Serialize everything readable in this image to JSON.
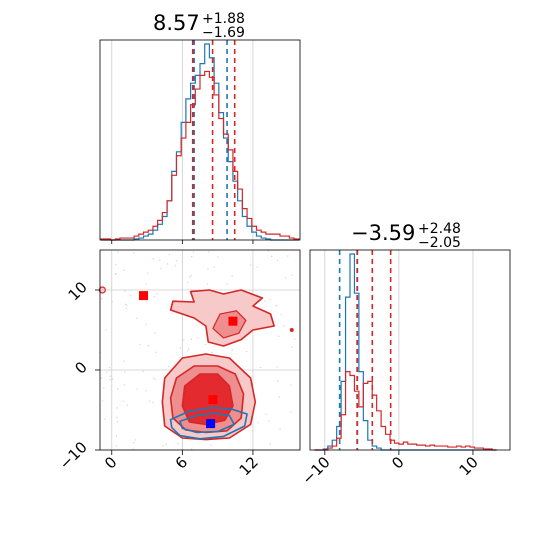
{
  "chart_data": [
    {
      "type": "histogram",
      "panel": "top-left",
      "title": {
        "main": "8.57",
        "plus": "+1.88",
        "minus": "−1.69"
      },
      "xlim": [
        -1,
        16
      ],
      "bins": [
        -0.9,
        -0.5,
        -0.1,
        0.3,
        0.7,
        1.1,
        1.5,
        1.9,
        2.3,
        2.7,
        3.1,
        3.5,
        3.9,
        4.3,
        4.7,
        5.1,
        5.5,
        5.9,
        6.3,
        6.7,
        7.1,
        7.5,
        7.9,
        8.3,
        8.7,
        9.1,
        9.5,
        9.9,
        10.3,
        10.7,
        11.1,
        11.5,
        11.9,
        12.3,
        12.7,
        13.1,
        13.5,
        13.9,
        14.3,
        14.7,
        15.1,
        15.5,
        15.9
      ],
      "series": [
        {
          "color": "#1f77b4",
          "values": [
            0,
            0,
            0,
            0,
            0,
            0,
            0,
            0.005,
            0.01,
            0.02,
            0.03,
            0.05,
            0.08,
            0.12,
            0.2,
            0.35,
            0.45,
            0.6,
            0.72,
            0.8,
            0.84,
            0.9,
            1.0,
            0.93,
            0.8,
            0.65,
            0.52,
            0.4,
            0.3,
            0.2,
            0.12,
            0.07,
            0.04,
            0.02,
            0.01,
            0.005,
            0,
            0,
            0,
            0,
            0,
            0
          ],
          "quantiles": [
            7.0,
            9.8
          ]
        },
        {
          "color": "#d62728",
          "values": [
            0.005,
            0.005,
            0,
            0.005,
            0.01,
            0.01,
            0.01,
            0.02,
            0.03,
            0.04,
            0.05,
            0.07,
            0.1,
            0.14,
            0.2,
            0.33,
            0.43,
            0.52,
            0.6,
            0.69,
            0.77,
            0.84,
            0.86,
            0.83,
            0.74,
            0.62,
            0.54,
            0.46,
            0.35,
            0.26,
            0.16,
            0.11,
            0.07,
            0.05,
            0.04,
            0.03,
            0.03,
            0.03,
            0.02,
            0.02,
            0.01,
            0.005
          ],
          "quantiles": [
            6.88,
            8.57,
            10.45
          ]
        }
      ]
    },
    {
      "type": "scatter",
      "panel": "bottom-left",
      "xlim": [
        -1,
        16
      ],
      "ylim": [
        -10,
        15
      ],
      "xticks": [
        0,
        6,
        12
      ],
      "yticks": [
        -10,
        0,
        10
      ],
      "xtick_labels": [
        "0",
        "6",
        "12"
      ],
      "ytick_labels": [
        "−10",
        "0",
        "10"
      ],
      "contours": [
        {
          "color": "#d62728",
          "level": "outer",
          "points": [
            [
              8,
              -8.7
            ],
            [
              6,
              -8.5
            ],
            [
              4.5,
              -7
            ],
            [
              4.3,
              -4
            ],
            [
              4.5,
              -1
            ],
            [
              6,
              1.5
            ],
            [
              8,
              2
            ],
            [
              10,
              1.5
            ],
            [
              11.8,
              -1
            ],
            [
              12.2,
              -4
            ],
            [
              11.8,
              -6.8
            ],
            [
              10,
              -8.5
            ]
          ]
        },
        {
          "color": "#d62728",
          "level": "middle",
          "points": [
            [
              8,
              -7.8
            ],
            [
              6.3,
              -7.5
            ],
            [
              5.2,
              -6
            ],
            [
              5,
              -3.5
            ],
            [
              5.5,
              -1
            ],
            [
              7,
              0.5
            ],
            [
              9,
              0.5
            ],
            [
              10.5,
              -0.5
            ],
            [
              11.2,
              -3
            ],
            [
              11,
              -6
            ],
            [
              9.8,
              -7.6
            ]
          ]
        },
        {
          "color": "#d62728",
          "level": "inner",
          "points": [
            [
              8,
              -6.8
            ],
            [
              6.6,
              -6.5
            ],
            [
              6,
              -4.5
            ],
            [
              6.2,
              -2
            ],
            [
              7.5,
              -0.5
            ],
            [
              9,
              -0.5
            ],
            [
              10,
              -2
            ],
            [
              10.3,
              -4.5
            ],
            [
              9.6,
              -6.3
            ]
          ]
        },
        {
          "color": "#d62728",
          "level": "upper-blob",
          "points": [
            [
              5,
              7.5
            ],
            [
              7,
              6.5
            ],
            [
              8,
              5.5
            ],
            [
              8.2,
              3.5
            ],
            [
              9.5,
              3
            ],
            [
              11,
              3.8
            ],
            [
              12,
              5
            ],
            [
              13.8,
              5.5
            ],
            [
              13.5,
              7
            ],
            [
              12,
              8
            ],
            [
              12.8,
              9
            ],
            [
              11,
              10
            ],
            [
              9.5,
              9.5
            ],
            [
              8.3,
              10
            ],
            [
              6.7,
              9.8
            ],
            [
              7,
              8.5
            ],
            [
              5.2,
              8.6
            ]
          ]
        }
      ],
      "blue_contours": [
        {
          "color": "#1f77b4",
          "points": [
            [
              5,
              -6.2
            ],
            [
              6.5,
              -5.2
            ],
            [
              8.5,
              -4.7
            ],
            [
              10.2,
              -4.9
            ],
            [
              11.5,
              -5.5
            ],
            [
              11.3,
              -7
            ],
            [
              9.5,
              -8.3
            ],
            [
              7.5,
              -8.6
            ],
            [
              5.8,
              -8.2
            ],
            [
              5.1,
              -7.2
            ]
          ]
        },
        {
          "color": "#1f77b4",
          "points": [
            [
              5.8,
              -6.4
            ],
            [
              7.2,
              -5.7
            ],
            [
              8.7,
              -5.4
            ],
            [
              10,
              -5.7
            ],
            [
              10.4,
              -6.8
            ],
            [
              9,
              -7.7
            ],
            [
              7.2,
              -7.8
            ],
            [
              6.0,
              -7.3
            ]
          ]
        }
      ],
      "markers": [
        {
          "x": 2.7,
          "y": 9.3,
          "color": "#ff0000"
        },
        {
          "x": 10.3,
          "y": 6.1,
          "color": "#ff0000"
        },
        {
          "x": 8.6,
          "y": -3.7,
          "color": "#ff0000"
        },
        {
          "x": 8.4,
          "y": -6.7,
          "color": "#0000ff"
        }
      ]
    },
    {
      "type": "histogram",
      "panel": "bottom-right",
      "title": {
        "main": "−3.59",
        "plus": "+2.48",
        "minus": "−2.05"
      },
      "xlim": [
        -12,
        15
      ],
      "xticks": [
        -10,
        0,
        10
      ],
      "xtick_labels": [
        "−10",
        "0",
        "10"
      ],
      "bins": [
        -11.4,
        -10.8,
        -10.2,
        -9.6,
        -9.0,
        -8.4,
        -7.8,
        -7.2,
        -6.6,
        -6.0,
        -5.4,
        -4.8,
        -4.2,
        -3.6,
        -3.0,
        -2.4,
        -1.8,
        -1.2,
        -0.6,
        0,
        0.6,
        1.2,
        1.8,
        2.4,
        3.0,
        3.6,
        4.2,
        4.8,
        5.4,
        6.0,
        6.6,
        7.2,
        7.8,
        8.4,
        9.0,
        9.6,
        10.2,
        10.8,
        11.4,
        12.0,
        12.6,
        13.2
      ],
      "series": [
        {
          "color": "#1f77b4",
          "values": [
            0,
            0,
            0.005,
            0.02,
            0.05,
            0.12,
            0.35,
            0.78,
            1.0,
            0.8,
            0.4,
            0.15,
            0.05,
            0.02,
            0.01,
            0,
            0,
            0,
            0,
            0,
            0,
            0,
            0,
            0,
            0,
            0,
            0,
            0,
            0,
            0,
            0,
            0,
            0,
            0,
            0,
            0,
            0,
            0,
            0,
            0,
            0
          ],
          "quantiles": [
            -8.0,
            -5.6
          ]
        },
        {
          "color": "#d62728",
          "values": [
            0,
            0,
            0,
            0.01,
            0.02,
            0.06,
            0.18,
            0.4,
            0.38,
            0.3,
            0.22,
            0.34,
            0.35,
            0.28,
            0.2,
            0.12,
            0.08,
            0.05,
            0.035,
            0.03,
            0.04,
            0.03,
            0.03,
            0.025,
            0.025,
            0.02,
            0.025,
            0.02,
            0.02,
            0.02,
            0.015,
            0.015,
            0.02,
            0.015,
            0.02,
            0.015,
            0.01,
            0.01,
            0.005,
            0.005,
            0
          ],
          "quantiles": [
            -5.64,
            -3.59,
            -1.11
          ]
        }
      ]
    }
  ]
}
